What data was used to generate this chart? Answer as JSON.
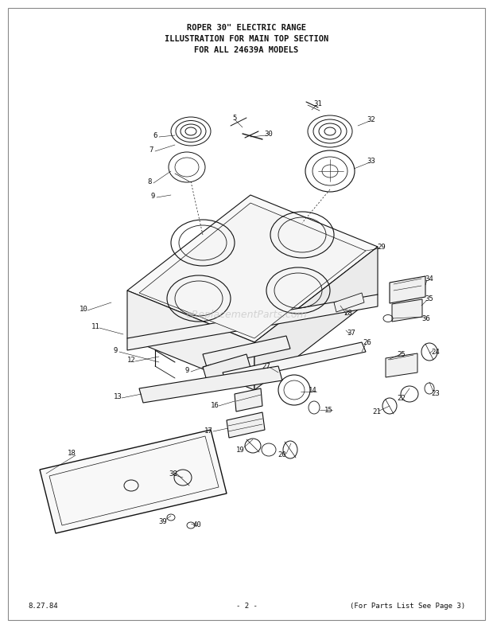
{
  "title_line1": "ROPER 30\" ELECTRIC RANGE",
  "title_line2": "ILLUSTRATION FOR MAIN TOP SECTION",
  "title_line3": "FOR ALL 24639A MODELS",
  "footer_left": "8.27.84",
  "footer_center": "- 2 -",
  "footer_right": "(For Parts List See Page 3)",
  "watermark": "eReplacementParts.com",
  "bg_color": "#ffffff",
  "lc": "#111111",
  "tc": "#111111"
}
